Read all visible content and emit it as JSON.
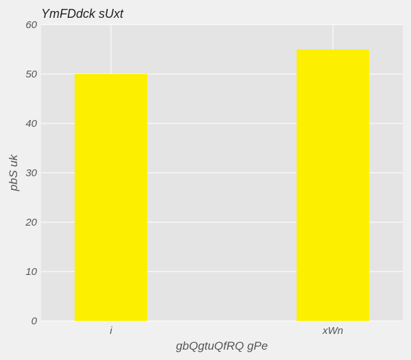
{
  "chart_data": {
    "type": "bar",
    "title": "YmFDdck sUxt",
    "xlabel": "gbQgtuQfRQ gPe",
    "ylabel": "pbS uk",
    "categories": [
      "i",
      "xWn"
    ],
    "values": [
      50,
      55
    ],
    "ylim": [
      0,
      60
    ],
    "yticks": [
      0,
      10,
      20,
      30,
      40,
      50,
      60
    ],
    "grid": true,
    "colors": {
      "bar": "#fcf000",
      "plot_background": "#e4e4e4",
      "figure_background": "#f0f0f0",
      "grid": "#ffffff"
    }
  }
}
